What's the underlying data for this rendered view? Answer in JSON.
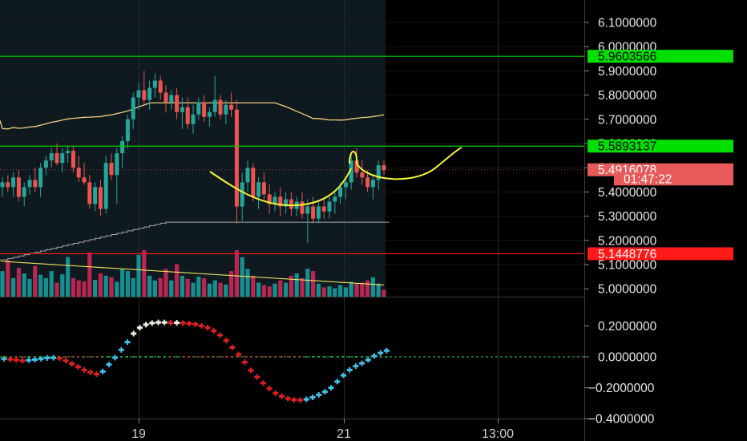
{
  "chart_data": [
    {
      "type": "candlestick",
      "title": "",
      "ylim": [
        4.98,
        6.13
      ],
      "y_ticks": [
        "6.1000000",
        "6.0000000",
        "5.9000000",
        "5.8000000",
        "5.7000000",
        "5.6000000",
        "5.5000000",
        "5.4000000",
        "5.3000000",
        "5.2000000",
        "5.1000000",
        "5.0000000"
      ],
      "x_tick_labels": [
        "19",
        "21",
        "13:00"
      ],
      "price_tags": [
        {
          "label": "5.9603566",
          "value": 5.9603566,
          "color": "#00e000",
          "text_color": "#000000"
        },
        {
          "label": "5.5893137",
          "value": 5.5893137,
          "color": "#00e000",
          "text_color": "#000000"
        },
        {
          "label": "5.4916078",
          "value": 5.4916078,
          "color": "#e85a5a",
          "text_color": "#ffffff"
        },
        {
          "label": "01:47:22",
          "value": 5.4535,
          "color": "#e85a5a",
          "text_color": "#ffffff"
        },
        {
          "label": "5.1448776",
          "value": 5.1448776,
          "color": "#ff1a1a",
          "text_color": "#ffffff"
        }
      ],
      "horizontal_lines": [
        {
          "value": 5.9603566,
          "color": "#00d000"
        },
        {
          "value": 5.5893137,
          "color": "#00d000"
        },
        {
          "value": 5.1448776,
          "color": "#ff1a1a"
        }
      ],
      "candles": [
        [
          5.42,
          5.46,
          5.38,
          5.44
        ],
        [
          5.44,
          5.47,
          5.4,
          5.42
        ],
        [
          5.42,
          5.48,
          5.38,
          5.46
        ],
        [
          5.46,
          5.49,
          5.36,
          5.38
        ],
        [
          5.38,
          5.44,
          5.34,
          5.42
        ],
        [
          5.42,
          5.47,
          5.39,
          5.45
        ],
        [
          5.45,
          5.5,
          5.4,
          5.42
        ],
        [
          5.42,
          5.52,
          5.38,
          5.5
        ],
        [
          5.5,
          5.55,
          5.47,
          5.53
        ],
        [
          5.53,
          5.58,
          5.5,
          5.56
        ],
        [
          5.56,
          5.6,
          5.51,
          5.52
        ],
        [
          5.52,
          5.58,
          5.48,
          5.56
        ],
        [
          5.56,
          5.59,
          5.52,
          5.57
        ],
        [
          5.57,
          5.59,
          5.48,
          5.5
        ],
        [
          5.5,
          5.55,
          5.44,
          5.46
        ],
        [
          5.46,
          5.52,
          5.43,
          5.44
        ],
        [
          5.44,
          5.47,
          5.33,
          5.35
        ],
        [
          5.35,
          5.44,
          5.32,
          5.42
        ],
        [
          5.42,
          5.45,
          5.3,
          5.33
        ],
        [
          5.33,
          5.55,
          5.31,
          5.52
        ],
        [
          5.52,
          5.56,
          5.45,
          5.47
        ],
        [
          5.47,
          5.58,
          5.35,
          5.56
        ],
        [
          5.56,
          5.63,
          5.5,
          5.61
        ],
        [
          5.61,
          5.72,
          5.58,
          5.7
        ],
        [
          5.7,
          5.81,
          5.66,
          5.79
        ],
        [
          5.79,
          5.85,
          5.74,
          5.82
        ],
        [
          5.82,
          5.9,
          5.76,
          5.78
        ],
        [
          5.78,
          5.86,
          5.74,
          5.83
        ],
        [
          5.83,
          5.89,
          5.79,
          5.86
        ],
        [
          5.86,
          5.88,
          5.78,
          5.81
        ],
        [
          5.81,
          5.84,
          5.73,
          5.77
        ],
        [
          5.77,
          5.82,
          5.74,
          5.8
        ],
        [
          5.8,
          5.83,
          5.7,
          5.73
        ],
        [
          5.73,
          5.79,
          5.66,
          5.75
        ],
        [
          5.75,
          5.79,
          5.66,
          5.68
        ],
        [
          5.68,
          5.76,
          5.64,
          5.72
        ],
        [
          5.72,
          5.79,
          5.7,
          5.77
        ],
        [
          5.77,
          5.8,
          5.69,
          5.71
        ],
        [
          5.71,
          5.75,
          5.67,
          5.73
        ],
        [
          5.73,
          5.88,
          5.71,
          5.78
        ],
        [
          5.78,
          5.8,
          5.7,
          5.72
        ],
        [
          5.72,
          5.78,
          5.68,
          5.76
        ],
        [
          5.76,
          5.81,
          5.71,
          5.74
        ],
        [
          5.74,
          5.78,
          5.27,
          5.34
        ],
        [
          5.34,
          5.48,
          5.28,
          5.44
        ],
        [
          5.44,
          5.53,
          5.4,
          5.5
        ],
        [
          5.5,
          5.52,
          5.36,
          5.38
        ],
        [
          5.38,
          5.46,
          5.33,
          5.44
        ],
        [
          5.44,
          5.48,
          5.37,
          5.39
        ],
        [
          5.39,
          5.43,
          5.31,
          5.35
        ],
        [
          5.35,
          5.4,
          5.32,
          5.38
        ],
        [
          5.38,
          5.42,
          5.3,
          5.34
        ],
        [
          5.34,
          5.4,
          5.31,
          5.37
        ],
        [
          5.37,
          5.4,
          5.3,
          5.33
        ],
        [
          5.33,
          5.38,
          5.3,
          5.36
        ],
        [
          5.36,
          5.4,
          5.29,
          5.31
        ],
        [
          5.31,
          5.37,
          5.19,
          5.34
        ],
        [
          5.34,
          5.38,
          5.27,
          5.29
        ],
        [
          5.29,
          5.36,
          5.27,
          5.34
        ],
        [
          5.34,
          5.37,
          5.29,
          5.32
        ],
        [
          5.32,
          5.38,
          5.29,
          5.36
        ],
        [
          5.36,
          5.4,
          5.31,
          5.38
        ],
        [
          5.38,
          5.44,
          5.35,
          5.42
        ],
        [
          5.42,
          5.46,
          5.37,
          5.44
        ],
        [
          5.44,
          5.55,
          5.41,
          5.53
        ],
        [
          5.53,
          5.58,
          5.46,
          5.48
        ],
        [
          5.48,
          5.53,
          5.43,
          5.46
        ],
        [
          5.46,
          5.49,
          5.4,
          5.42
        ],
        [
          5.42,
          5.47,
          5.37,
          5.45
        ],
        [
          5.45,
          5.53,
          5.41,
          5.51
        ],
        [
          5.51,
          5.53,
          5.47,
          5.49
        ]
      ],
      "volumes": [
        0.55,
        0.78,
        0.4,
        0.62,
        0.5,
        0.38,
        0.66,
        0.47,
        0.4,
        0.55,
        0.3,
        0.48,
        0.85,
        0.4,
        0.35,
        0.33,
        0.95,
        0.36,
        0.5,
        0.45,
        0.42,
        0.32,
        0.6,
        0.55,
        0.4,
        0.9,
        1.0,
        0.45,
        0.35,
        0.4,
        0.6,
        0.35,
        0.7,
        0.45,
        0.38,
        0.3,
        0.43,
        0.4,
        0.28,
        0.35,
        0.3,
        0.26,
        0.55,
        1.0,
        0.85,
        0.6,
        0.45,
        0.3,
        0.25,
        0.22,
        0.28,
        0.35,
        0.3,
        0.45,
        0.5,
        0.4,
        0.6,
        0.55,
        0.28,
        0.2,
        0.22,
        0.18,
        0.25,
        0.2,
        0.32,
        0.28,
        0.3,
        0.35,
        0.42,
        0.28,
        0.15
      ],
      "overlay_lines": [
        {
          "name": "",
          "color": "#f0d080"
        },
        {
          "name": "",
          "color": "#d8d8d8"
        },
        {
          "name": "",
          "color": "#f0e060"
        }
      ],
      "drawn_curve": {
        "color": "#f5f53a"
      }
    },
    {
      "type": "scatter",
      "ylim": [
        -0.42,
        0.27
      ],
      "y_ticks": [
        "0.2000000",
        "0.0000000",
        "−0.2000000",
        "−0.4000000"
      ],
      "colors": {
        "falling": "#e02020",
        "rising": "#42c0e8",
        "top": "#f0f0e0"
      },
      "values": [
        -0.012,
        -0.016,
        -0.02,
        -0.025,
        -0.022,
        -0.018,
        -0.012,
        -0.008,
        -0.006,
        -0.01,
        -0.025,
        -0.045,
        -0.065,
        -0.085,
        -0.1,
        -0.112,
        -0.095,
        -0.05,
        -0.005,
        0.045,
        0.095,
        0.15,
        0.188,
        0.208,
        0.218,
        0.222,
        0.222,
        0.22,
        0.22,
        0.218,
        0.215,
        0.21,
        0.2,
        0.188,
        0.168,
        0.14,
        0.105,
        0.06,
        0.015,
        -0.035,
        -0.088,
        -0.13,
        -0.17,
        -0.205,
        -0.235,
        -0.255,
        -0.27,
        -0.278,
        -0.28,
        -0.275,
        -0.262,
        -0.246,
        -0.226,
        -0.2,
        -0.16,
        -0.12,
        -0.085,
        -0.06,
        -0.042,
        -0.02,
        0.005,
        0.025,
        0.04
      ]
    }
  ]
}
